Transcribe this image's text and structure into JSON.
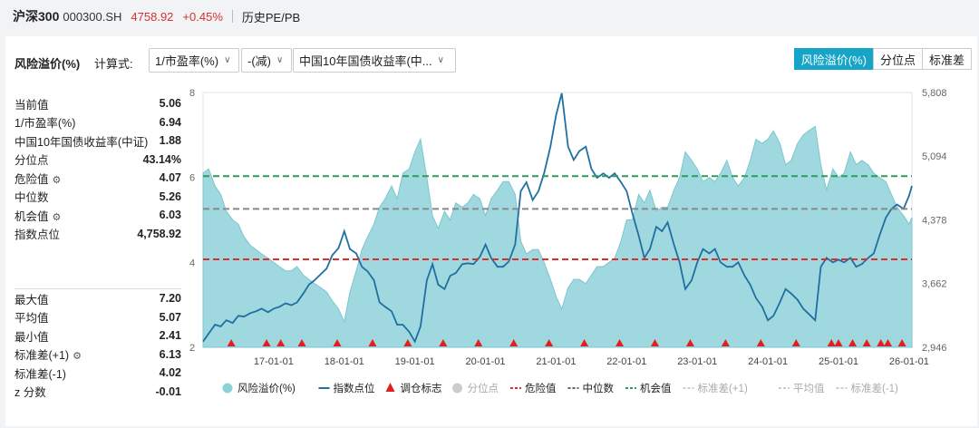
{
  "header": {
    "name": "沪深300",
    "code": "000300.SH",
    "price": "4758.92",
    "change": "+0.45%",
    "link": "历史PE/PB"
  },
  "controls": {
    "title": "风险溢价(%)",
    "calc_label": "计算式:",
    "sel1": "1/市盈率(%)",
    "sel2": "-(减)",
    "sel3": "中国10年国债收益率(中...",
    "tabs": [
      "风险溢价(%)",
      "分位点",
      "标准差"
    ],
    "active_tab": 0
  },
  "stats_top": [
    {
      "label": "当前值",
      "value": "5.06",
      "gear": false
    },
    {
      "label": "1/市盈率(%)",
      "value": "6.94",
      "gear": false
    },
    {
      "label": "中国10年国债收益率(中证)",
      "value": "1.88",
      "gear": false
    },
    {
      "label": "分位点",
      "value": "43.14%",
      "gear": false
    },
    {
      "label": "危险值",
      "value": "4.07",
      "gear": true
    },
    {
      "label": "中位数",
      "value": "5.26",
      "gear": false
    },
    {
      "label": "机会值",
      "value": "6.03",
      "gear": true
    },
    {
      "label": "指数点位",
      "value": "4,758.92",
      "gear": false
    }
  ],
  "stats_bottom": [
    {
      "label": "最大值",
      "value": "7.20",
      "gear": false
    },
    {
      "label": "平均值",
      "value": "5.07",
      "gear": false
    },
    {
      "label": "最小值",
      "value": "2.41",
      "gear": false
    },
    {
      "label": "标准差(+1)",
      "value": "6.13",
      "gear": true
    },
    {
      "label": "标准差(-1)",
      "value": "4.02",
      "gear": false
    },
    {
      "label": "z 分数",
      "value": "-0.01",
      "gear": false
    }
  ],
  "colors": {
    "area": "#8fd1d9",
    "line": "#1f6fa0",
    "danger": "#d9302b",
    "median": "#888888",
    "opportunity": "#2a9d5c",
    "accent": "#16a5c7"
  },
  "chart_data": {
    "type": "area",
    "x_ticks": [
      "17-01-01",
      "18-01-01",
      "19-01-01",
      "20-01-01",
      "21-01-01",
      "22-01-01",
      "23-01-01",
      "24-01-01",
      "25-01-01",
      "26-01-01"
    ],
    "x_range": [
      2016.0,
      2026.04
    ],
    "y_left_ticks": [
      "8",
      "6",
      "4",
      "2"
    ],
    "y_left_range": [
      2,
      8
    ],
    "y_right_ticks": [
      "5,808",
      "5,094",
      "4,378",
      "3,662",
      "2,946"
    ],
    "y_right_range": [
      2946,
      5808
    ],
    "reference_lines": {
      "danger": 4.07,
      "median": 5.26,
      "opportunity": 6.03
    },
    "series": [
      {
        "name": "风险溢价(%)",
        "axis": "left",
        "x": [
          2016.0,
          2016.08,
          2016.17,
          2016.25,
          2016.33,
          2016.42,
          2016.5,
          2016.58,
          2016.67,
          2016.75,
          2016.83,
          2016.92,
          2017.0,
          2017.08,
          2017.17,
          2017.25,
          2017.33,
          2017.42,
          2017.5,
          2017.58,
          2017.67,
          2017.75,
          2017.83,
          2017.92,
          2018.0,
          2018.08,
          2018.17,
          2018.25,
          2018.33,
          2018.42,
          2018.5,
          2018.58,
          2018.67,
          2018.75,
          2018.83,
          2018.92,
          2019.0,
          2019.08,
          2019.17,
          2019.25,
          2019.33,
          2019.42,
          2019.5,
          2019.58,
          2019.67,
          2019.75,
          2019.83,
          2019.92,
          2020.0,
          2020.08,
          2020.17,
          2020.25,
          2020.33,
          2020.42,
          2020.5,
          2020.58,
          2020.67,
          2020.75,
          2020.83,
          2020.92,
          2021.0,
          2021.08,
          2021.17,
          2021.25,
          2021.33,
          2021.42,
          2021.5,
          2021.58,
          2021.67,
          2021.75,
          2021.83,
          2021.92,
          2022.0,
          2022.08,
          2022.17,
          2022.25,
          2022.33,
          2022.42,
          2022.5,
          2022.58,
          2022.67,
          2022.75,
          2022.83,
          2022.92,
          2023.0,
          2023.08,
          2023.17,
          2023.25,
          2023.33,
          2023.42,
          2023.5,
          2023.58,
          2023.67,
          2023.75,
          2023.83,
          2023.92,
          2024.0,
          2024.08,
          2024.17,
          2024.25,
          2024.33,
          2024.42,
          2024.5,
          2024.58,
          2024.67,
          2024.75,
          2024.83,
          2024.92,
          2025.0,
          2025.08,
          2025.17,
          2025.25,
          2025.33,
          2025.42,
          2025.5,
          2025.58,
          2025.67,
          2025.75,
          2025.83,
          2025.92,
          2026.0,
          2026.04
        ],
        "values": [
          6.1,
          6.2,
          5.8,
          5.6,
          5.2,
          5.0,
          4.9,
          4.6,
          4.4,
          4.3,
          4.2,
          4.1,
          4.0,
          3.9,
          3.8,
          3.8,
          3.9,
          3.7,
          3.6,
          3.5,
          3.4,
          3.3,
          3.1,
          2.9,
          2.6,
          3.3,
          3.8,
          4.3,
          4.6,
          4.9,
          5.3,
          5.5,
          5.8,
          5.5,
          6.1,
          6.2,
          6.6,
          6.9,
          6.0,
          5.1,
          4.8,
          5.2,
          5.0,
          5.4,
          5.3,
          5.4,
          5.6,
          5.5,
          5.1,
          5.5,
          5.7,
          5.9,
          5.9,
          5.6,
          4.5,
          4.2,
          4.3,
          4.3,
          4.0,
          3.6,
          3.2,
          2.9,
          3.4,
          3.6,
          3.6,
          3.5,
          3.7,
          3.9,
          3.9,
          4.0,
          4.1,
          4.5,
          5.0,
          5.0,
          5.6,
          5.4,
          5.7,
          5.2,
          5.3,
          5.3,
          5.7,
          6.0,
          6.6,
          6.4,
          6.2,
          5.9,
          6.0,
          5.9,
          6.1,
          6.4,
          6.0,
          5.8,
          6.0,
          6.4,
          6.9,
          6.8,
          6.9,
          7.1,
          6.8,
          6.3,
          6.4,
          6.8,
          7.0,
          7.1,
          7.2,
          6.3,
          5.7,
          6.2,
          6.0,
          6.1,
          6.6,
          6.3,
          6.4,
          6.3,
          6.1,
          6.0,
          5.9,
          5.6,
          5.3,
          5.1,
          4.9,
          5.06
        ]
      },
      {
        "name": "指数点位",
        "axis": "right",
        "x": [
          2016.0,
          2016.08,
          2016.17,
          2016.25,
          2016.33,
          2016.42,
          2016.5,
          2016.58,
          2016.67,
          2016.75,
          2016.83,
          2016.92,
          2017.0,
          2017.08,
          2017.17,
          2017.25,
          2017.33,
          2017.42,
          2017.5,
          2017.58,
          2017.67,
          2017.75,
          2017.83,
          2017.92,
          2018.0,
          2018.08,
          2018.17,
          2018.25,
          2018.33,
          2018.42,
          2018.5,
          2018.58,
          2018.67,
          2018.75,
          2018.83,
          2018.92,
          2019.0,
          2019.08,
          2019.17,
          2019.25,
          2019.33,
          2019.42,
          2019.5,
          2019.58,
          2019.67,
          2019.75,
          2019.83,
          2019.92,
          2020.0,
          2020.08,
          2020.17,
          2020.25,
          2020.33,
          2020.42,
          2020.5,
          2020.58,
          2020.67,
          2020.75,
          2020.83,
          2020.92,
          2021.0,
          2021.08,
          2021.17,
          2021.25,
          2021.33,
          2021.42,
          2021.5,
          2021.58,
          2021.67,
          2021.75,
          2021.83,
          2021.92,
          2022.0,
          2022.08,
          2022.17,
          2022.25,
          2022.33,
          2022.42,
          2022.5,
          2022.58,
          2022.67,
          2022.75,
          2022.83,
          2022.92,
          2023.0,
          2023.08,
          2023.17,
          2023.25,
          2023.33,
          2023.42,
          2023.5,
          2023.58,
          2023.67,
          2023.75,
          2023.83,
          2023.92,
          2024.0,
          2024.08,
          2024.17,
          2024.25,
          2024.33,
          2024.42,
          2024.5,
          2024.58,
          2024.67,
          2024.75,
          2024.83,
          2024.92,
          2025.0,
          2025.08,
          2025.17,
          2025.25,
          2025.33,
          2025.42,
          2025.5,
          2025.58,
          2025.67,
          2025.75,
          2025.83,
          2025.92,
          2026.0,
          2026.04
        ],
        "values": [
          3010,
          3100,
          3200,
          3180,
          3250,
          3220,
          3300,
          3290,
          3330,
          3350,
          3380,
          3340,
          3380,
          3400,
          3440,
          3420,
          3450,
          3550,
          3650,
          3700,
          3770,
          3830,
          3980,
          4060,
          4250,
          4050,
          4000,
          3850,
          3800,
          3700,
          3450,
          3400,
          3350,
          3200,
          3200,
          3120,
          3010,
          3180,
          3700,
          3880,
          3650,
          3600,
          3750,
          3780,
          3880,
          3890,
          3880,
          3960,
          4100,
          3950,
          3850,
          3850,
          3910,
          4100,
          4700,
          4800,
          4600,
          4700,
          4900,
          5200,
          5550,
          5800,
          5200,
          5050,
          5150,
          5200,
          4950,
          4850,
          4900,
          4850,
          4900,
          4800,
          4700,
          4450,
          4200,
          3950,
          4050,
          4300,
          4250,
          4350,
          4100,
          3900,
          3600,
          3700,
          3900,
          4050,
          4000,
          4050,
          3900,
          3850,
          3850,
          3900,
          3750,
          3650,
          3500,
          3400,
          3250,
          3300,
          3450,
          3600,
          3550,
          3480,
          3380,
          3320,
          3250,
          3850,
          3950,
          3900,
          3930,
          3900,
          3950,
          3850,
          3880,
          3950,
          4000,
          4200,
          4400,
          4500,
          4550,
          4500,
          4650,
          4758.92
        ]
      }
    ],
    "markers": {
      "name": "调仓标志",
      "x": [
        2016.4,
        2016.9,
        2017.1,
        2017.4,
        2017.9,
        2018.4,
        2018.9,
        2019.4,
        2019.9,
        2020.4,
        2020.9,
        2021.4,
        2021.9,
        2022.4,
        2022.9,
        2023.4,
        2023.9,
        2024.4,
        2024.9,
        2025.0,
        2025.2,
        2025.4,
        2025.6,
        2025.7,
        2025.9
      ]
    },
    "legend": [
      {
        "label": "风险溢价(%)",
        "kind": "circle",
        "color": "#8fd1d9"
      },
      {
        "label": "指数点位",
        "kind": "line",
        "color": "#1f6fa0"
      },
      {
        "label": "调仓标志",
        "kind": "triangle",
        "color": "#e02020"
      },
      {
        "label": "分位点",
        "kind": "circle",
        "color": "#cccccc"
      },
      {
        "label": "危险值",
        "kind": "dash",
        "color": "#d9302b"
      },
      {
        "label": "中位数",
        "kind": "dash",
        "color": "#666666"
      },
      {
        "label": "机会值",
        "kind": "dash",
        "color": "#2a9d5c"
      },
      {
        "label": "标准差(+1)",
        "kind": "dash",
        "color": "#cccccc"
      },
      {
        "label": "平均值",
        "kind": "dash",
        "color": "#cccccc"
      },
      {
        "label": "标准差(-1)",
        "kind": "dash",
        "color": "#cccccc"
      }
    ]
  }
}
